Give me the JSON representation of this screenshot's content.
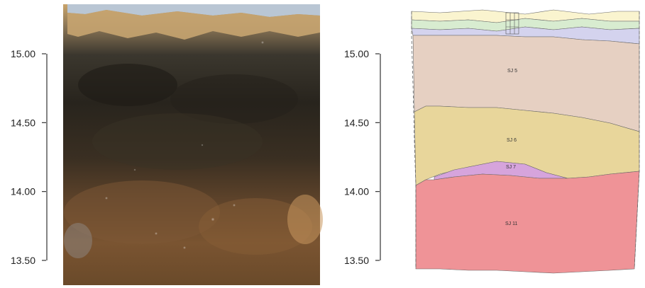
{
  "left_scale": {
    "ticks": [
      {
        "value": 15.0,
        "label": "15.00"
      },
      {
        "value": 14.5,
        "label": "14.50"
      },
      {
        "value": 14.0,
        "label": "14.00"
      },
      {
        "value": 13.5,
        "label": "13.50"
      }
    ]
  },
  "right_scale": {
    "ticks": [
      {
        "value": 15.0,
        "label": "15.00"
      },
      {
        "value": 14.5,
        "label": "14.50"
      },
      {
        "value": 14.0,
        "label": "14.00"
      },
      {
        "value": 13.5,
        "label": "13.50"
      }
    ]
  },
  "layers": [
    {
      "id": "SJ 5",
      "label": "SJ 5",
      "color": "#e6d0c2"
    },
    {
      "id": "SJ 6",
      "label": "SJ 6",
      "color": "#e8d69b"
    },
    {
      "id": "SJ 7",
      "label": "SJ 7",
      "color": "#d6a4dc"
    },
    {
      "id": "SJ 11",
      "label": "SJ 11",
      "color": "#ef9397"
    }
  ],
  "thin_layer_colors": [
    "#faf4cf",
    "#d8ecd0",
    "#d4d3ee"
  ],
  "photo": {
    "sky_color": "#a8b8cc",
    "topsoil_color": "#c8a26a",
    "dark_color": "#2a2620",
    "brown_color": "#6a4a2a"
  }
}
